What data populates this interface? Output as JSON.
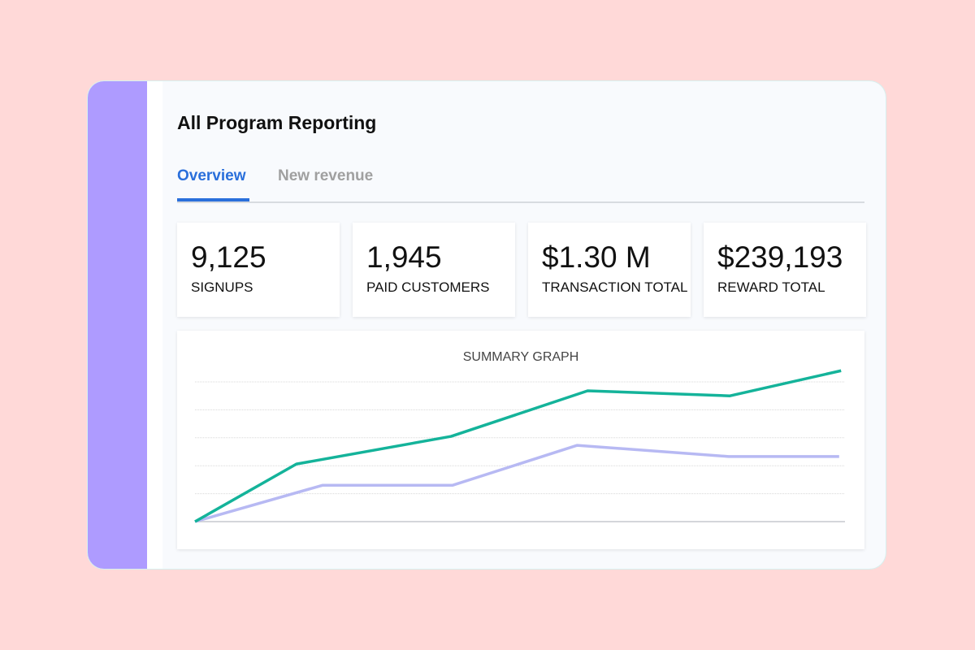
{
  "header": {
    "title": "All Program Reporting"
  },
  "tabs": [
    {
      "label": "Overview",
      "active": true
    },
    {
      "label": "New revenue",
      "active": false
    }
  ],
  "stats": [
    {
      "value": "9,125",
      "label": "SIGNUPS"
    },
    {
      "value": "1,945",
      "label": "PAID CUSTOMERS"
    },
    {
      "value": "$1.30 M",
      "label": "TRANSACTION TOTAL"
    },
    {
      "value": "$239,193",
      "label": "REWARD TOTAL"
    }
  ],
  "colors": {
    "accent": "#2a6fdb",
    "sidebar": "#ae9bff",
    "series1": "#14b39a",
    "series2": "#b7b9f3"
  },
  "chart_data": {
    "type": "line",
    "title": "SUMMARY GRAPH",
    "xlabel": "",
    "ylabel": "",
    "xlim": [
      0,
      100
    ],
    "ylim": [
      0,
      5
    ],
    "grid": true,
    "series": [
      {
        "name": "series-1",
        "color": "#14b39a",
        "x": [
          0,
          15.6,
          39.4,
          60.4,
          82.3,
          99.4
        ],
        "y": [
          0,
          2.06,
          3.05,
          4.68,
          4.5,
          5.4
        ]
      },
      {
        "name": "series-2",
        "color": "#b7b9f3",
        "x": [
          0,
          19.6,
          39.6,
          58.8,
          82.1,
          99.1
        ],
        "y": [
          0,
          1.3,
          1.3,
          2.73,
          2.33,
          2.33
        ]
      }
    ]
  }
}
